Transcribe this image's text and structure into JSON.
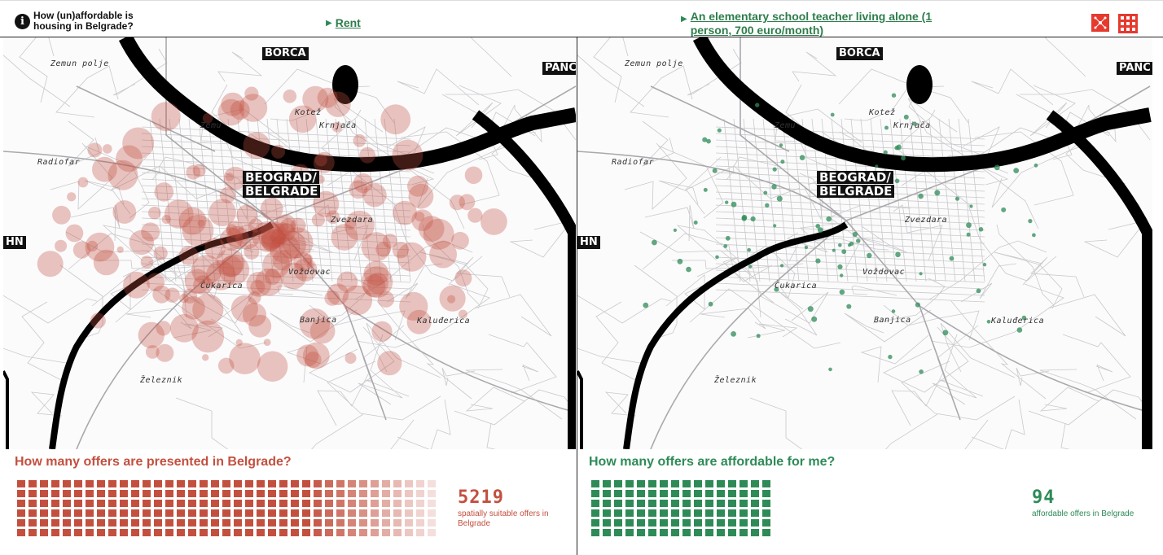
{
  "header": {
    "title": "How (un)affordable is housing in Belgrade?",
    "info_icon": "i",
    "rent_link": "Rent",
    "profile_link": "An elementary school teacher living alone (1 person, 700 euro/month)"
  },
  "map_labels": {
    "city_main_1": "BEOGRAD/",
    "city_main_2": "BELGRADE",
    "borca": "BORČA",
    "panc": "PANČ",
    "hn": "HN",
    "places": {
      "zemun_polje": "Zemun polje",
      "radiofar": "Radiofar",
      "zemun": "Zemu",
      "kotez": "Kotež",
      "krnjaca": "Krnjača",
      "zvezdara": "Zvezdara",
      "vozdovac": "Voždovac",
      "cukarica": "Čukarica",
      "banjica": "Banjica",
      "kaluderica": "Kaluđerica",
      "zeleznik": "Železnik"
    }
  },
  "left": {
    "stats_title": "How many offers are presented in Belgrade?",
    "count": "5219",
    "count_label": "spatially suitable offers in Belgrade",
    "color": "#c3503f"
  },
  "right": {
    "stats_title": "How many offers are affordable for me?",
    "count": "94",
    "count_label": "affordable offers in Belgrade",
    "color": "#2e8b57"
  }
}
